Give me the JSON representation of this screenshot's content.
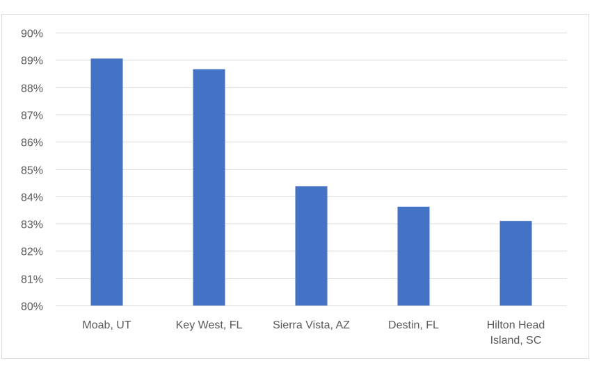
{
  "chart_data": {
    "type": "bar",
    "title": "",
    "xlabel": "",
    "ylabel": "",
    "categories": [
      "Moab, UT",
      "Key West, FL",
      "Sierra Vista, AZ",
      "Destin, FL",
      "Hilton Head Island, SC"
    ],
    "category_lines": [
      [
        "Moab, UT"
      ],
      [
        "Key West, FL"
      ],
      [
        "Sierra Vista, AZ"
      ],
      [
        "Destin, FL"
      ],
      [
        "Hilton Head",
        "Island, SC"
      ]
    ],
    "values": [
      0.8905,
      0.8866,
      0.8437,
      0.8362,
      0.831
    ],
    "ylim": [
      0.8,
      0.9
    ],
    "yticks": [
      0.8,
      0.81,
      0.82,
      0.83,
      0.84,
      0.85,
      0.86,
      0.87,
      0.88,
      0.89,
      0.9
    ],
    "ytick_labels": [
      "80%",
      "81%",
      "82%",
      "83%",
      "84%",
      "85%",
      "86%",
      "87%",
      "88%",
      "89%",
      "90%"
    ],
    "grid": true,
    "legend": "none",
    "bar_color": "#4472c4",
    "grid_color": "#d9d9d9",
    "axis_color": "#d9d9d9"
  }
}
